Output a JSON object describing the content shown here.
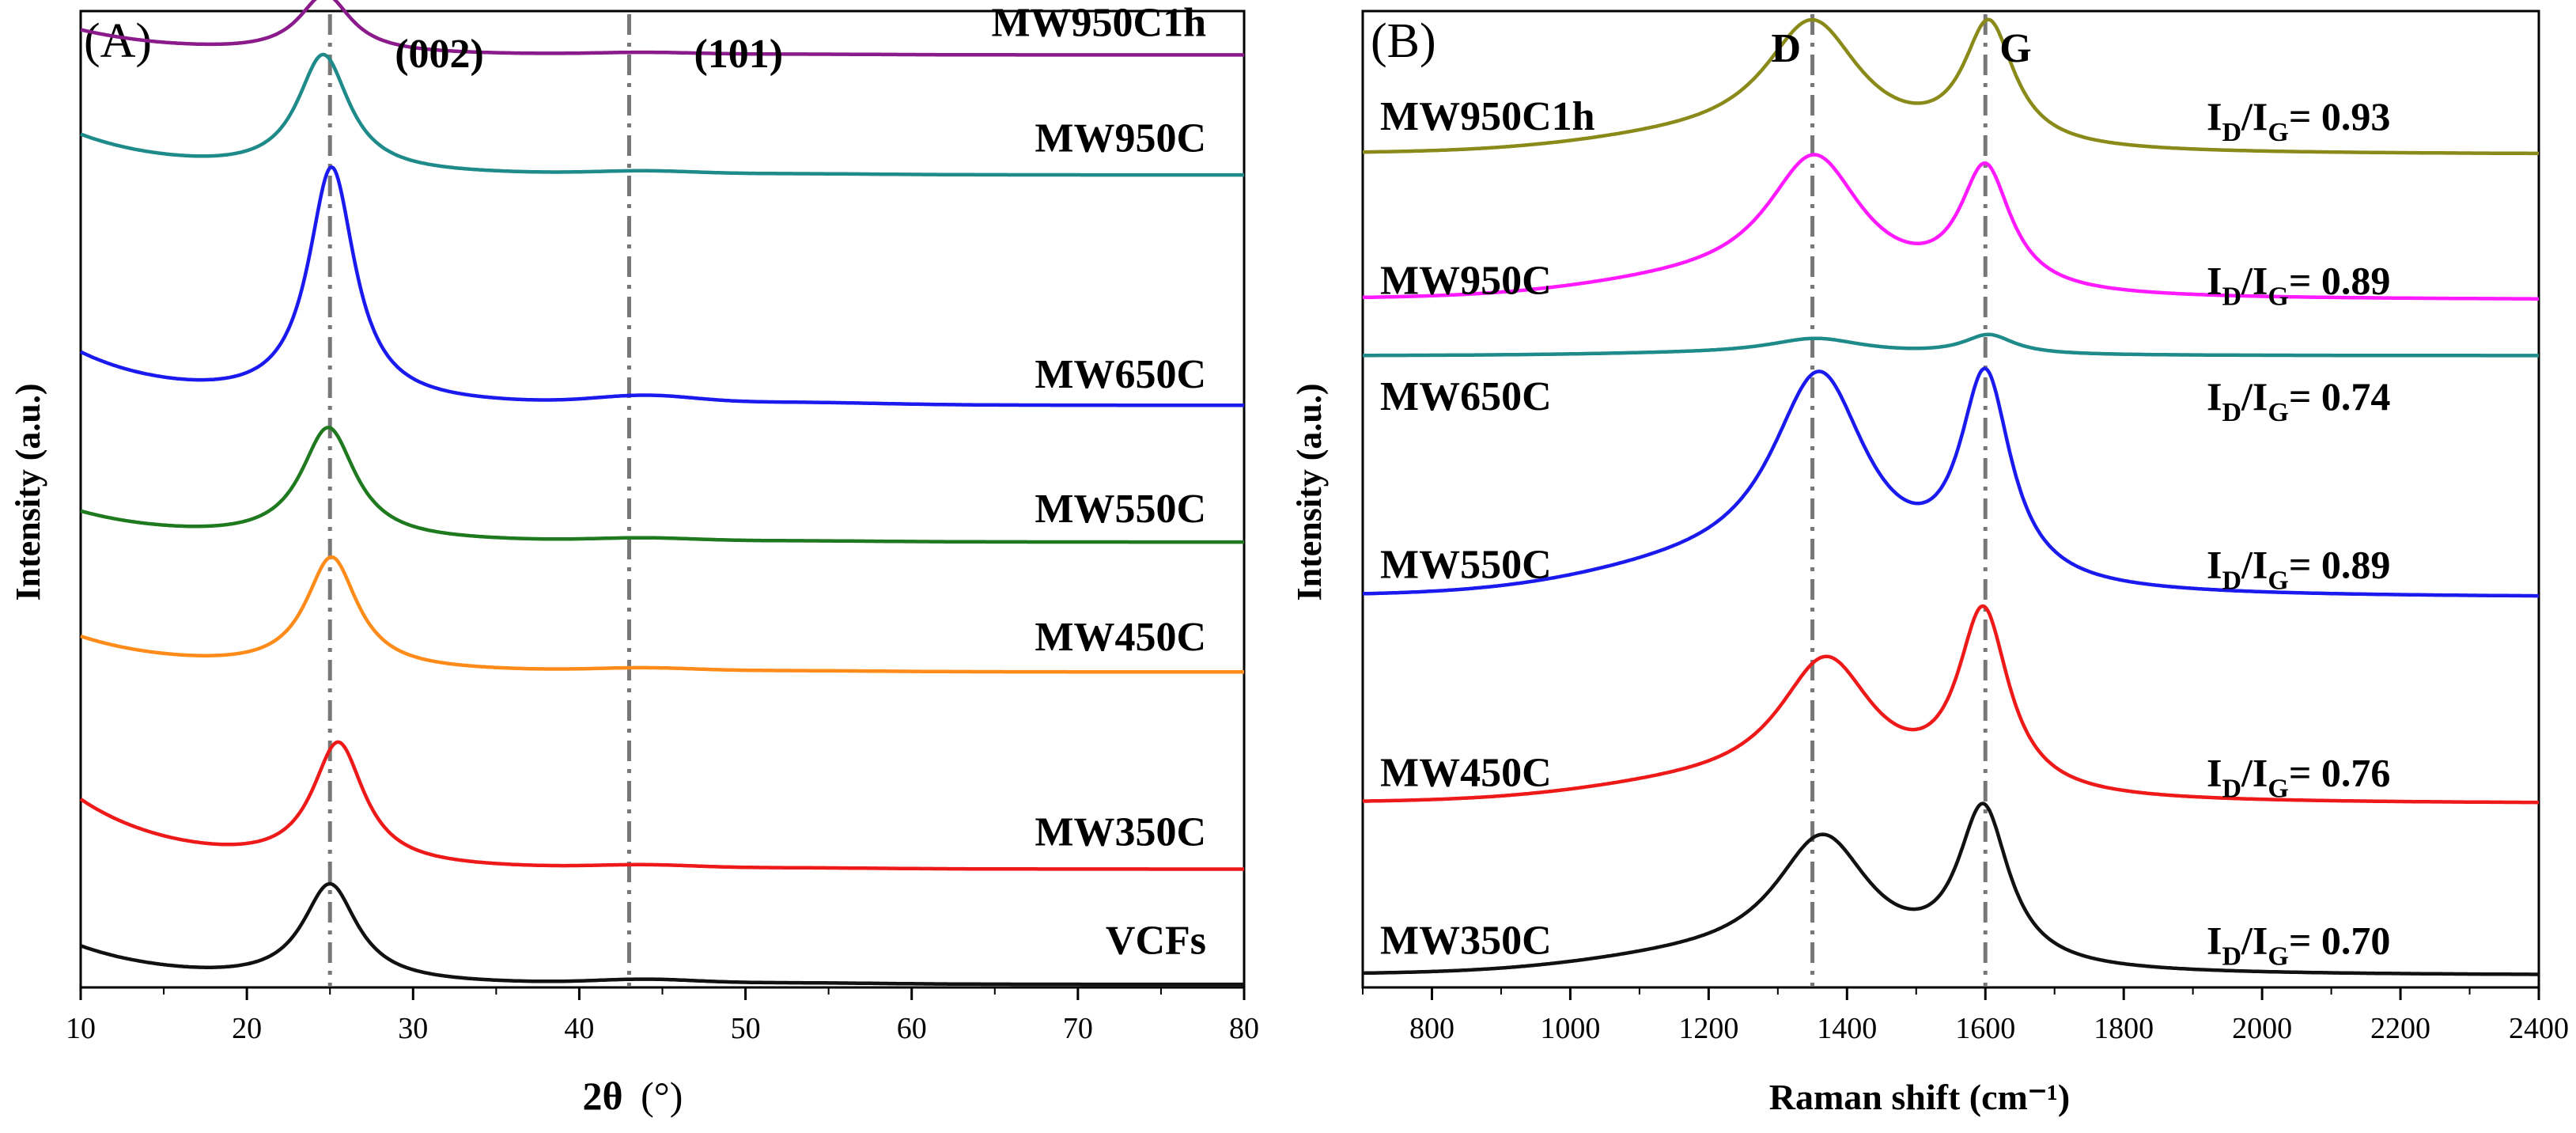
{
  "chart_data": [
    {
      "type": "line",
      "panel_label": "(A)",
      "xlabel_main": "2θ",
      "xlabel_unit": "(°)",
      "ylabel": "Intensity (a.u.)",
      "xlim": [
        10,
        80
      ],
      "xticks": [
        10,
        20,
        30,
        40,
        50,
        60,
        70,
        80
      ],
      "ylim": [
        0,
        100
      ],
      "ref_lines": [
        {
          "x": 25,
          "label": "(002)"
        },
        {
          "x": 43,
          "label": "(101)"
        }
      ],
      "series": [
        {
          "name": "MW950C1h",
          "color": "#8b1a8b",
          "offset": 95.5,
          "peak_height": 6,
          "peak_center": 24.7,
          "peak_width": 1.9,
          "baseline_start": 2.5,
          "hump_height": 0.2,
          "label_level": 96.3
        },
        {
          "name": "MW950C",
          "color": "#1f8a8a",
          "offset": 83.2,
          "peak_height": 12,
          "peak_center": 24.6,
          "peak_width": 1.9,
          "baseline_start": 4,
          "hump_height": 0.3,
          "label_level": 84.5
        },
        {
          "name": "MW650C",
          "color": "#1a1aee",
          "offset": 59.6,
          "peak_height": 24,
          "peak_center": 25.1,
          "peak_width": 1.7,
          "baseline_start": 5.2,
          "hump_height": 0.8,
          "label_level": 60.3
        },
        {
          "name": "MW550C",
          "color": "#1f7a1f",
          "offset": 45.6,
          "peak_height": 11.5,
          "peak_center": 24.9,
          "peak_width": 2.0,
          "baseline_start": 3,
          "hump_height": 0.3,
          "label_level": 46.5
        },
        {
          "name": "MW450C",
          "color": "#ff8c1a",
          "offset": 32.3,
          "peak_height": 11.5,
          "peak_center": 25.1,
          "peak_width": 1.9,
          "baseline_start": 3.5,
          "hump_height": 0.3,
          "label_level": 33.4
        },
        {
          "name": "MW350C",
          "color": "#ee1a1a",
          "offset": 12.1,
          "peak_height": 12.5,
          "peak_center": 25.5,
          "peak_width": 1.9,
          "baseline_start": 7,
          "hump_height": 0.3,
          "label_level": 13.4
        },
        {
          "name": "VCFs",
          "color": "#111111",
          "offset": 0.3,
          "peak_height": 10,
          "peak_center": 25.0,
          "peak_width": 2.0,
          "baseline_start": 3.8,
          "hump_height": 0.4,
          "label_level": 2.3
        }
      ]
    },
    {
      "type": "line",
      "panel_label": "(B)",
      "xlabel": "Raman shift (cm⁻¹)",
      "ylabel": "Intensity (a.u.)",
      "xlim": [
        700,
        2400
      ],
      "xticks": [
        800,
        1000,
        1200,
        1400,
        1600,
        1800,
        2000,
        2200,
        2400
      ],
      "ylim": [
        0,
        100
      ],
      "ref_lines": [
        {
          "x": 1350,
          "label": "D"
        },
        {
          "x": 1600,
          "label": "G"
        }
      ],
      "series": [
        {
          "name": "MW950C1h",
          "color": "#8a8a1a",
          "offset": 85.3,
          "ratio": "0.93",
          "d_height": 12.5,
          "d_center": 1350,
          "g_height": 12.5,
          "g_center": 1605,
          "label_level": 89.3
        },
        {
          "name": "MW950C",
          "color": "#ff1aff",
          "offset": 70.4,
          "ratio": "0.89",
          "d_height": 13.5,
          "d_center": 1353,
          "g_height": 12.5,
          "g_center": 1600,
          "label_level": 72.5
        },
        {
          "name": "MW650C",
          "color": "#1f8a8a",
          "offset": 64.7,
          "ratio": "0.74",
          "d_height": 1.6,
          "d_center": 1355,
          "g_height": 2.0,
          "g_center": 1605,
          "label_level": 60.6
        },
        {
          "name": "MW550C",
          "color": "#1a1aee",
          "offset": 39.9,
          "ratio": "0.89",
          "d_height": 21,
          "d_center": 1360,
          "g_height": 21,
          "g_center": 1600,
          "label_level": 43.4
        },
        {
          "name": "MW450C",
          "color": "#ee1a1a",
          "offset": 18.8,
          "ratio": "0.76",
          "d_height": 13.5,
          "d_center": 1370,
          "g_height": 18.5,
          "g_center": 1597,
          "label_level": 22.1
        },
        {
          "name": "MW350C",
          "color": "#111111",
          "offset": 1.2,
          "ratio": "0.70",
          "d_height": 13,
          "d_center": 1365,
          "g_height": 16,
          "g_center": 1597,
          "label_level": 4.9
        }
      ]
    }
  ]
}
